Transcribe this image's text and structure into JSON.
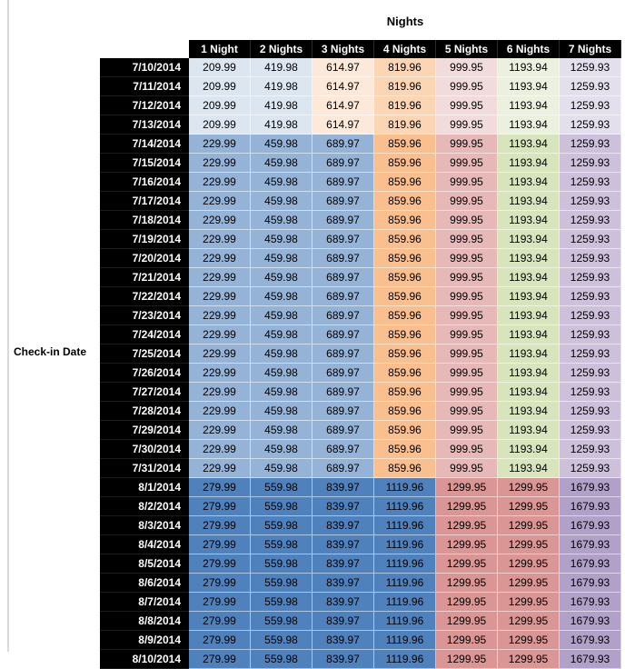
{
  "chart_data": {
    "type": "table",
    "title": "Nights",
    "row_label": "Check-in Date",
    "columns": [
      "1 Night",
      "2 Nights",
      "3 Nights",
      "4 Nights",
      "5 Nights",
      "6 Nights",
      "7 Nights"
    ],
    "row_groups": [
      {
        "dates": [
          "7/10/2014",
          "7/11/2014",
          "7/12/2014",
          "7/13/2014"
        ],
        "prices": [
          209.99,
          419.98,
          614.97,
          819.96,
          999.95,
          1193.94,
          1259.93
        ],
        "cell_colors": [
          "#dce6f1",
          "#dce6f1",
          "#fde9d9",
          "#fcd5b4",
          "#f2dcdb",
          "#ebf1de",
          "#e4dfec"
        ]
      },
      {
        "dates": [
          "7/14/2014",
          "7/15/2014",
          "7/16/2014",
          "7/17/2014",
          "7/18/2014",
          "7/19/2014",
          "7/20/2014",
          "7/21/2014",
          "7/22/2014",
          "7/23/2014",
          "7/24/2014",
          "7/25/2014",
          "7/26/2014",
          "7/27/2014",
          "7/28/2014",
          "7/29/2014",
          "7/30/2014",
          "7/31/2014"
        ],
        "prices": [
          229.99,
          459.98,
          689.97,
          859.96,
          999.95,
          1193.94,
          1259.93
        ],
        "cell_colors": [
          "#95b3d7",
          "#95b3d7",
          "#95b3d7",
          "#fabf8f",
          "#e6b8b7",
          "#d7e4bc",
          "#ccc0da"
        ]
      },
      {
        "dates": [
          "8/1/2014",
          "8/2/2014",
          "8/3/2014",
          "8/4/2014",
          "8/5/2014",
          "8/6/2014",
          "8/7/2014",
          "8/8/2014",
          "8/9/2014",
          "8/10/2014"
        ],
        "prices": [
          279.99,
          559.98,
          839.97,
          1119.96,
          1299.95,
          1299.95,
          1679.93
        ],
        "cell_colors": [
          "#4f81bd",
          "#4f81bd",
          "#4f81bd",
          "#4f81bd",
          "#d99694",
          "#d99694",
          "#b1a0c7"
        ]
      }
    ],
    "styles": {
      "header_bg": "#000000",
      "header_text": "#ffffff",
      "body_text": "#000000"
    }
  }
}
